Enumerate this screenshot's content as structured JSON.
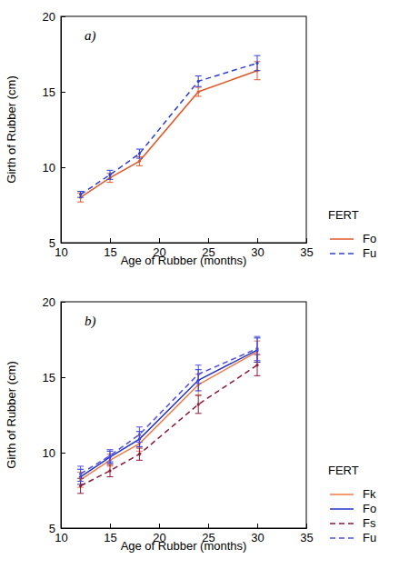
{
  "chart_data": [
    {
      "type": "line",
      "title": "a)",
      "x_label": "Age of Rubber (months)",
      "y_label": "Girth of Rubber (cm)",
      "legend_title": "FERT",
      "legend": "right",
      "x": [
        12,
        15,
        18,
        24,
        30
      ],
      "xlim": [
        10,
        35
      ],
      "xticks": [
        10,
        15,
        20,
        25,
        30,
        35
      ],
      "ylim": [
        5,
        20
      ],
      "yticks": [
        5,
        10,
        15,
        20
      ],
      "marker": "circle",
      "series": [
        {
          "name": "Fo",
          "color": "#e0582b",
          "line_style": "solid",
          "values": [
            8.0,
            9.3,
            10.4,
            15.0,
            16.4
          ],
          "errors": [
            0.3,
            0.3,
            0.3,
            0.3,
            0.6
          ]
        },
        {
          "name": "Fu",
          "color": "#2b3fd6",
          "line_style": "dashed",
          "values": [
            8.2,
            9.5,
            10.9,
            15.7,
            16.9
          ],
          "errors": [
            0.2,
            0.3,
            0.3,
            0.35,
            0.5
          ]
        }
      ]
    },
    {
      "type": "line",
      "title": "b)",
      "x_label": "Age of Rubber (months)",
      "y_label": "Girth of Rubber (cm)",
      "legend_title": "FERT",
      "legend": "right",
      "x": [
        12,
        15,
        18,
        24,
        30
      ],
      "xlim": [
        10,
        35
      ],
      "xticks": [
        10,
        15,
        20,
        25,
        30,
        35
      ],
      "ylim": [
        5,
        20
      ],
      "yticks": [
        5,
        10,
        15,
        20
      ],
      "marker": "circle",
      "series": [
        {
          "name": "Fk",
          "color": "#ee7a4a",
          "line_style": "solid",
          "values": [
            8.2,
            9.5,
            10.6,
            14.5,
            16.7
          ],
          "errors": [
            0.5,
            0.4,
            0.5,
            0.7,
            0.7
          ]
        },
        {
          "name": "Fo",
          "color": "#2233cc",
          "line_style": "solid",
          "values": [
            8.4,
            9.7,
            10.9,
            14.8,
            16.8
          ],
          "errors": [
            0.5,
            0.4,
            0.5,
            0.7,
            0.8
          ]
        },
        {
          "name": "Fs",
          "color": "#8b1a3a",
          "line_style": "dashed",
          "values": [
            7.8,
            8.8,
            9.9,
            13.2,
            15.8
          ],
          "errors": [
            0.5,
            0.4,
            0.4,
            0.6,
            0.7
          ]
        },
        {
          "name": "Fu",
          "color": "#5050e0",
          "line_style": "dashed",
          "values": [
            8.6,
            9.8,
            11.2,
            15.2,
            16.9
          ],
          "errors": [
            0.5,
            0.4,
            0.5,
            0.6,
            0.8
          ]
        }
      ]
    }
  ]
}
